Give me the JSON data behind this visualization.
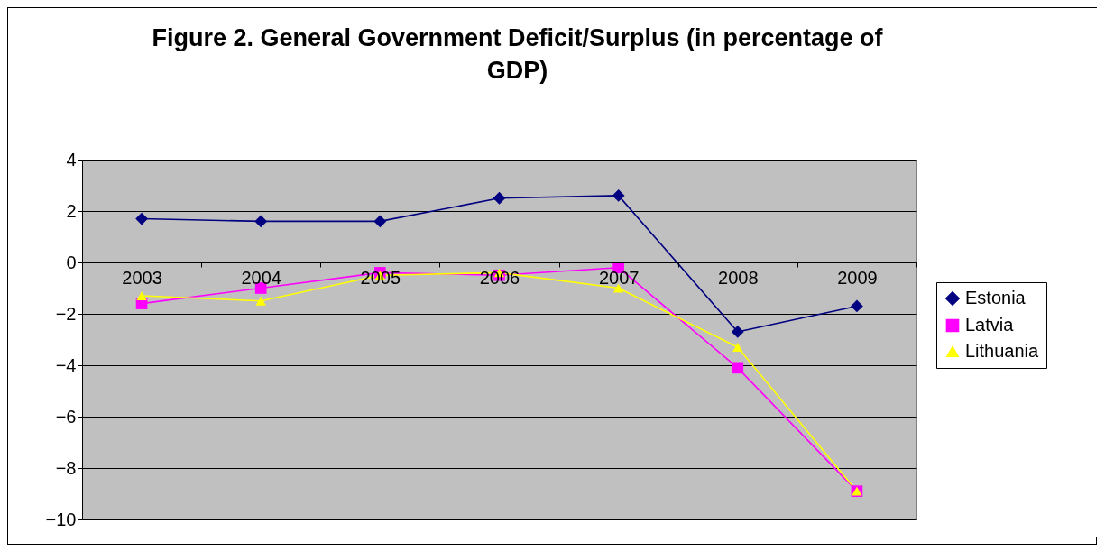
{
  "chart_data": {
    "type": "line",
    "title": "Figure 2. General Government Deficit/Surplus (in percentage of GDP)",
    "categories": [
      "2003",
      "2004",
      "2005",
      "2006",
      "2007",
      "2008",
      "2009"
    ],
    "series": [
      {
        "name": "Estonia",
        "color": "#000080",
        "marker": "diamond",
        "values": [
          1.7,
          1.6,
          1.6,
          2.5,
          2.6,
          -2.7,
          -1.7
        ]
      },
      {
        "name": "Latvia",
        "color": "#ff00ff",
        "marker": "square",
        "values": [
          -1.6,
          -1.0,
          -0.4,
          -0.5,
          -0.2,
          -4.1,
          -8.9
        ]
      },
      {
        "name": "Lithuania",
        "color": "#ffff00",
        "marker": "triangle",
        "values": [
          -1.3,
          -1.5,
          -0.5,
          -0.4,
          -1.0,
          -3.3,
          -8.9
        ]
      }
    ],
    "ylim": [
      -10,
      4
    ],
    "yticks": [
      -10,
      -8,
      -6,
      -4,
      -2,
      0,
      2,
      4
    ],
    "grid": "y",
    "legend": "right",
    "line_style": "solid"
  }
}
